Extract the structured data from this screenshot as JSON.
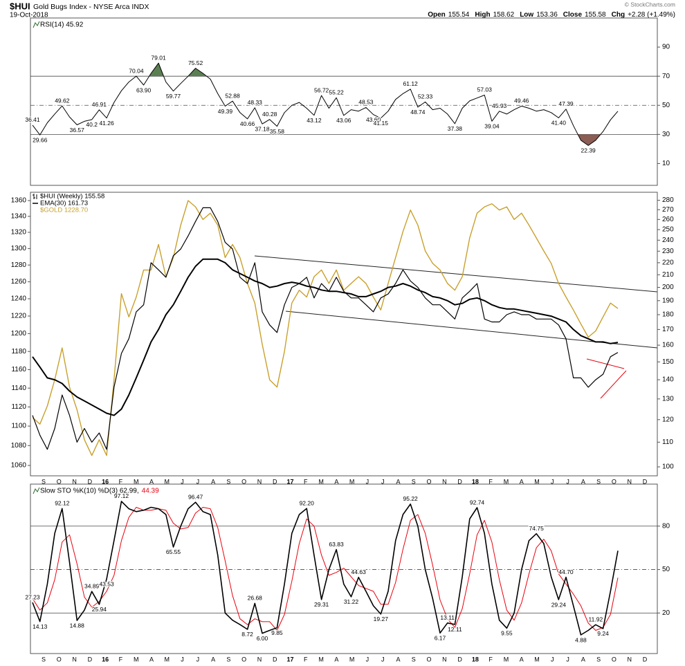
{
  "header": {
    "symbol": "$HUI",
    "name": "Gold Bugs Index - NYSE Arca INDX",
    "date": "19-Oct-2018",
    "quote": [
      {
        "label": "Open",
        "value": "155.54"
      },
      {
        "label": "High",
        "value": "158.62"
      },
      {
        "label": "Low",
        "value": "153.36"
      },
      {
        "label": "Close",
        "value": "155.58"
      },
      {
        "label": "Chg",
        "value": "+2.28 (+1.49%)"
      }
    ],
    "credit": "© StockCharts.com"
  },
  "chart_data": [
    {
      "type": "line",
      "title": "RSI(14) 45.92",
      "color": "#000000",
      "values": [
        36.41,
        29.66,
        38,
        44,
        49.62,
        42,
        36.57,
        39,
        40.2,
        46.91,
        41.26,
        52,
        60,
        66,
        70.04,
        63.9,
        72,
        79.01,
        66,
        59.77,
        65,
        70,
        75.52,
        72,
        68,
        58,
        49.39,
        52.88,
        45,
        40.66,
        48.33,
        37.18,
        40.28,
        35.58,
        45,
        50,
        52,
        48,
        43.12,
        56.72,
        48,
        55.22,
        43.06,
        47,
        46,
        48.53,
        43.6,
        41.15,
        46,
        54,
        58,
        61.12,
        48.74,
        52.33,
        47,
        48,
        44,
        37.38,
        48,
        53,
        55,
        57.03,
        39.04,
        45.93,
        44,
        47,
        49.46,
        48,
        46,
        47,
        45,
        41.4,
        47.39,
        36,
        26,
        22.39,
        26,
        32,
        40,
        45.92
      ],
      "value_labels": [
        "36.41",
        "29.66",
        null,
        null,
        "49.62",
        null,
        "36.57",
        null,
        "40.2",
        "46.91",
        "41.26",
        null,
        null,
        null,
        "70.04",
        "63.90",
        null,
        "79.01",
        null,
        "59.77",
        null,
        null,
        "75.52",
        null,
        null,
        null,
        "49.39",
        "52.88",
        null,
        "40.66",
        "48.33",
        "37.18",
        "40.28",
        "35.58",
        null,
        null,
        null,
        null,
        "43.12",
        "56.72",
        null,
        "55.22",
        "43.06",
        null,
        null,
        "48.53",
        "43.60",
        "41.15",
        null,
        null,
        null,
        "61.12",
        "48.74",
        "52.33",
        null,
        null,
        null,
        "37.38",
        null,
        null,
        null,
        "57.03",
        "39.04",
        "45.93",
        null,
        null,
        "49.46",
        null,
        null,
        null,
        null,
        "41.40",
        "47.39",
        null,
        null,
        "22.39",
        null,
        null,
        null,
        null
      ],
      "ylim": [
        -5,
        110
      ],
      "yticks": [
        10,
        30,
        50,
        70,
        90
      ],
      "bands": {
        "upper": 70,
        "mid": 50,
        "lower": 30,
        "upper_color": "#5b7f52",
        "lower_color": "#8b5d55"
      }
    },
    {
      "type": "line",
      "log_scale": true,
      "ylim": [
        1049.7,
        1370.7
      ],
      "yticks": [
        1060,
        1080,
        1100,
        1120,
        1140,
        1160,
        1180,
        1200,
        1220,
        1240,
        1260,
        1280,
        1300,
        1320,
        1340,
        1360
      ],
      "y2lim": [
        96.6,
        288.8
      ],
      "y2ticks": [
        100,
        110,
        120,
        130,
        140,
        150,
        160,
        170,
        180,
        190,
        200,
        210,
        220,
        230,
        240,
        250,
        260,
        270,
        280
      ],
      "x_labels": [
        "S",
        "O",
        "N",
        "D",
        "16",
        "F",
        "M",
        "A",
        "M",
        "J",
        "J",
        "A",
        "S",
        "O",
        "N",
        "D",
        "17",
        "F",
        "M",
        "A",
        "M",
        "J",
        "J",
        "A",
        "S",
        "O",
        "N",
        "D",
        "18",
        "F",
        "M",
        "A",
        "M",
        "J",
        "J",
        "A",
        "S",
        "O",
        "N",
        "D"
      ],
      "series": [
        {
          "name": "$HUI (Weekly) 155.58",
          "color": "#000000",
          "axis": "y2",
          "width": 1.2,
          "values": [
            122,
            113,
            107,
            116,
            132,
            122,
            110,
            116,
            110,
            114,
            107,
            136,
            155,
            164,
            182,
            187,
            220,
            214,
            208,
            226,
            232,
            244,
            258,
            272,
            272,
            258,
            238,
            232,
            208,
            203,
            220,
            182,
            173,
            168,
            187,
            200,
            203,
            208,
            192,
            203,
            197,
            208,
            197,
            192,
            192,
            187,
            182,
            192,
            195,
            203,
            214,
            205,
            200,
            192,
            187,
            187,
            182,
            177,
            192,
            197,
            203,
            177,
            175,
            175,
            180,
            182,
            180,
            180,
            177,
            177,
            177,
            173,
            164,
            141,
            141,
            136,
            140,
            143,
            153,
            155.58
          ]
        },
        {
          "name": "EMA(30) 161.73",
          "color": "#000000",
          "axis": "y2",
          "width": 2,
          "values": [
            153,
            147,
            141,
            140,
            138,
            134,
            131,
            129,
            127,
            125,
            123,
            122,
            125,
            132,
            141,
            151,
            162,
            170,
            180,
            187,
            197,
            208,
            217,
            223,
            223,
            223,
            220,
            214,
            211,
            208,
            205,
            203,
            200,
            201,
            203,
            204,
            203,
            201,
            200,
            198,
            197,
            197,
            196,
            195,
            193,
            193,
            195,
            197,
            200,
            201,
            203,
            201,
            198,
            196,
            193,
            192,
            190,
            187,
            188,
            191,
            192,
            190,
            187,
            185,
            184,
            184,
            183,
            182,
            181,
            180,
            179,
            177,
            175,
            170,
            166,
            164,
            162,
            162,
            161,
            161.73
          ]
        },
        {
          "name": "$GOLD 1228.70",
          "color": "#c9a02c",
          "axis": "y",
          "width": 1.4,
          "values": [
            1109,
            1102,
            1121,
            1149,
            1184,
            1141,
            1117,
            1086,
            1070,
            1086,
            1070,
            1149,
            1246,
            1219,
            1242,
            1274,
            1274,
            1305,
            1266,
            1289,
            1329,
            1360,
            1352,
            1336,
            1344,
            1329,
            1289,
            1305,
            1289,
            1258,
            1235,
            1188,
            1149,
            1141,
            1180,
            1235,
            1250,
            1242,
            1266,
            1274,
            1258,
            1274,
            1250,
            1258,
            1266,
            1258,
            1242,
            1227,
            1258,
            1289,
            1321,
            1348,
            1329,
            1297,
            1282,
            1274,
            1258,
            1250,
            1266,
            1313,
            1344,
            1352,
            1356,
            1348,
            1352,
            1336,
            1344,
            1329,
            1313,
            1297,
            1282,
            1258,
            1242,
            1227,
            1211,
            1196,
            1203,
            1219,
            1235,
            1228.7
          ]
        }
      ]
    },
    {
      "type": "line",
      "title": "Slow STO %K(10) %D(3) 62.99,",
      "title_d": "44.39",
      "ylim": [
        -8,
        109
      ],
      "yticks": [
        20,
        50,
        80
      ],
      "bands": {
        "upper": 80,
        "mid": 50,
        "lower": 20
      },
      "series": [
        {
          "color": "#000000",
          "width": 1.6,
          "values": [
            27.23,
            14.13,
            40,
            75,
            92.12,
            55,
            14.88,
            22,
            34.89,
            25.94,
            43.53,
            70,
            97.12,
            92,
            90,
            91,
            93,
            92,
            88,
            65.55,
            80,
            92,
            96.47,
            90,
            88,
            60,
            20,
            15,
            12,
            8.72,
            26.68,
            6,
            8,
            9.85,
            40,
            75,
            88,
            92.2,
            60,
            29.31,
            50,
            63.83,
            40,
            31.22,
            44.63,
            35,
            25,
            19.27,
            35,
            70,
            88,
            95.22,
            80,
            50,
            30,
            6.17,
            13.11,
            12.11,
            45,
            85,
            92.74,
            75,
            40,
            15,
            9.55,
            20,
            50,
            70,
            74.75,
            68,
            45,
            29.24,
            44.7,
            25,
            4.88,
            8,
            11.92,
            9.24,
            35,
            62.99
          ],
          "value_labels": [
            "27.23",
            "14.13",
            null,
            null,
            "92.12",
            null,
            "14.88",
            null,
            "34.89",
            "25.94",
            "43.53",
            null,
            "97.12",
            null,
            null,
            null,
            null,
            null,
            null,
            "65.55",
            null,
            null,
            "96.47",
            null,
            null,
            null,
            null,
            null,
            null,
            "8.72",
            "26.68",
            "6.00",
            null,
            "9.85",
            null,
            null,
            null,
            "92.20",
            null,
            "29.31",
            null,
            "63.83",
            null,
            "31.22",
            "44.63",
            null,
            null,
            "19.27",
            null,
            null,
            null,
            "95.22",
            null,
            null,
            null,
            "6.17",
            "13.11",
            "12.11",
            null,
            null,
            "92.74",
            null,
            null,
            null,
            "9.55",
            null,
            null,
            null,
            "74.75",
            null,
            null,
            "29.24",
            "44.70",
            null,
            "4.88",
            null,
            "11.92",
            "9.24",
            null,
            null
          ]
        },
        {
          "color": "#e8000d",
          "width": 1,
          "values": [
            30,
            22,
            27,
            43,
            69,
            74,
            54,
            31,
            24,
            28,
            35,
            46,
            70,
            86,
            93,
            91,
            91,
            92,
            91,
            82,
            78,
            79,
            89,
            93,
            92,
            79,
            56,
            32,
            16,
            12,
            16,
            14,
            14,
            8,
            19,
            42,
            68,
            85,
            80,
            60,
            46,
            48,
            51,
            45,
            39,
            37,
            35,
            26,
            26,
            41,
            64,
            84,
            88,
            75,
            53,
            29,
            16,
            10,
            23,
            47,
            74,
            84,
            69,
            43,
            22,
            15,
            27,
            47,
            65,
            71,
            63,
            47,
            40,
            33,
            25,
            13,
            8,
            10,
            19,
            44.39
          ]
        }
      ]
    }
  ]
}
